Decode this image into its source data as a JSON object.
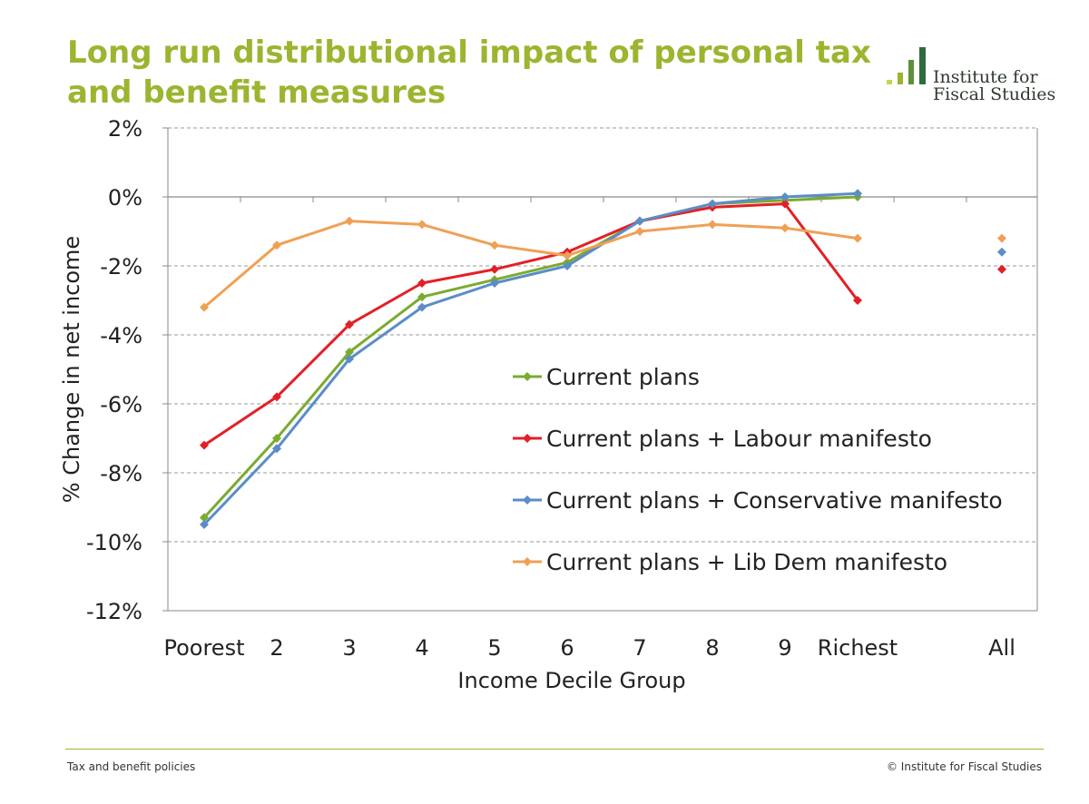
{
  "header": {
    "title": "Long run distributional impact of personal tax and benefit measures",
    "logo_line1": "Institute for",
    "logo_line2": "Fiscal Studies",
    "logo_colors": [
      "#c9d64a",
      "#9bb530",
      "#5e8f3a",
      "#2f6b3f"
    ]
  },
  "chart_data": {
    "type": "line",
    "title": "Long run distributional impact of personal tax and benefit measures",
    "xlabel": "Income Decile Group",
    "ylabel": "% Change in net income",
    "categories": [
      "Poorest",
      "2",
      "3",
      "4",
      "5",
      "6",
      "7",
      "8",
      "9",
      "Richest"
    ],
    "extra_category": "All",
    "ylim": [
      -12,
      2
    ],
    "yticks": [
      2,
      0,
      -2,
      -4,
      -6,
      -8,
      -10,
      -12
    ],
    "ytick_labels": [
      "2%",
      "0%",
      "-2%",
      "-4%",
      "-6%",
      "-8%",
      "-10%",
      "-12%"
    ],
    "grid": "horizontal dashed",
    "legend_position": "center-right",
    "series": [
      {
        "name": "Current plans",
        "color": "#7aab2f",
        "values": [
          -9.3,
          -7.0,
          -4.5,
          -2.9,
          -2.4,
          -1.9,
          -0.7,
          -0.2,
          -0.1,
          0.0
        ],
        "all": null
      },
      {
        "name": "Current plans + Labour manifesto",
        "color": "#e31f26",
        "values": [
          -7.2,
          -5.8,
          -3.7,
          -2.5,
          -2.1,
          -1.6,
          -0.7,
          -0.3,
          -0.2,
          -3.0
        ],
        "all": -2.1
      },
      {
        "name": "Current plans + Conservative manifesto",
        "color": "#5b8dc7",
        "values": [
          -9.5,
          -7.3,
          -4.7,
          -3.2,
          -2.5,
          -2.0,
          -0.7,
          -0.2,
          0.0,
          0.1
        ],
        "all": -1.6
      },
      {
        "name": "Current plans + Lib Dem manifesto",
        "color": "#f0a055",
        "values": [
          -3.2,
          -1.4,
          -0.7,
          -0.8,
          -1.4,
          -1.7,
          -1.0,
          -0.8,
          -0.9,
          -1.2
        ],
        "all": -1.2
      }
    ]
  },
  "footer": {
    "left": "Tax and benefit policies",
    "right": "© Institute for Fiscal Studies"
  }
}
